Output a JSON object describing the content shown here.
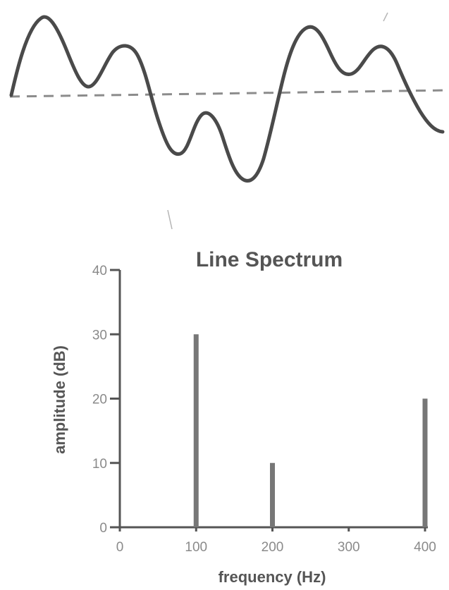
{
  "colors": {
    "waveform": "#4a4a4a",
    "baseline": "#8c8c8c",
    "axis": "#555555",
    "lines": "#777777",
    "tick_labels": "#8a8a8a"
  },
  "chart_data": {
    "type": "bar",
    "title": "Line Spectrum",
    "xlabel": "frequency (Hz)",
    "ylabel": "amplitude (dB)",
    "x": [
      100,
      200,
      400
    ],
    "values": [
      30,
      10,
      20
    ],
    "xlim": [
      0,
      400
    ],
    "ylim": [
      0,
      40
    ],
    "x_ticks": [
      "0",
      "100",
      "200",
      "300",
      "400"
    ],
    "y_ticks": [
      "0",
      "10",
      "20",
      "30",
      "40"
    ],
    "grid": false
  }
}
